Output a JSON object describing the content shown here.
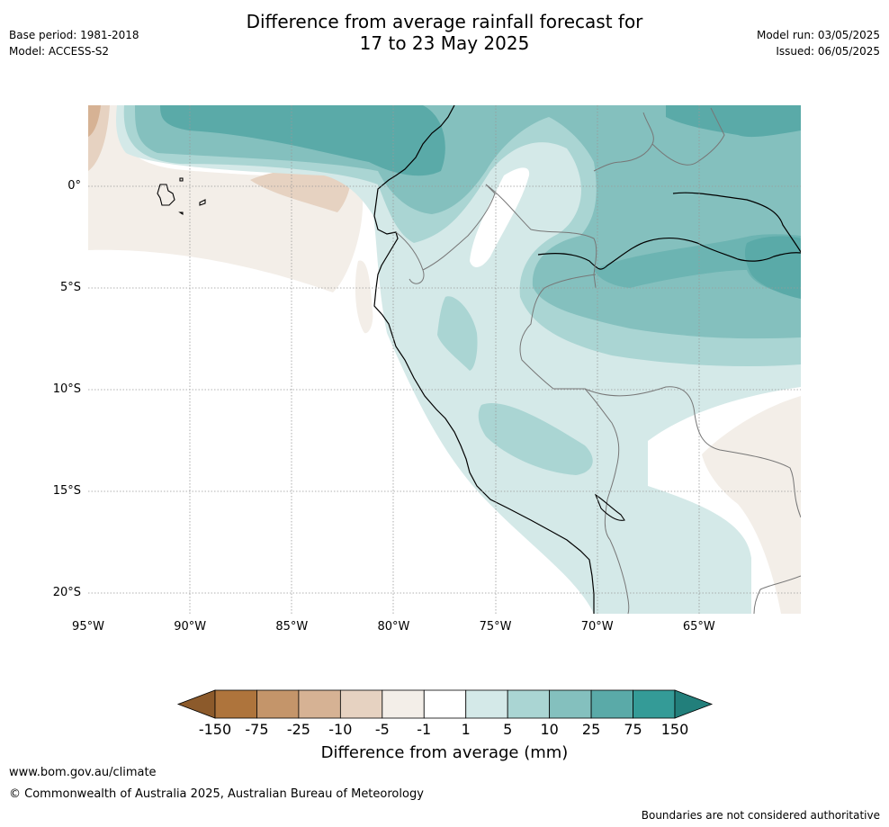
{
  "title": {
    "line1": "Difference from average rainfall forecast for",
    "line2": "17 to 23 May 2025"
  },
  "meta_left": {
    "base_period": "Base period: 1981-2018",
    "model": "Model: ACCESS-S2"
  },
  "meta_right": {
    "model_run": "Model run: 03/05/2025",
    "issued": "Issued: 06/05/2025"
  },
  "map": {
    "lon_range": [
      -95,
      -60
    ],
    "lat_range": [
      -21,
      4
    ],
    "lat_labels": [
      "0°",
      "5°S",
      "10°S",
      "15°S",
      "20°S"
    ],
    "lat_values": [
      0,
      -5,
      -10,
      -15,
      -20
    ],
    "lon_labels": [
      "95°W",
      "90°W",
      "85°W",
      "80°W",
      "75°W",
      "70°W",
      "65°W"
    ],
    "lon_values": [
      -95,
      -90,
      -85,
      -80,
      -75,
      -70,
      -65
    ]
  },
  "colorbar": {
    "ticks": [
      "-150",
      "-75",
      "-25",
      "-10",
      "-5",
      "-1",
      "1",
      "5",
      "10",
      "25",
      "75",
      "150"
    ],
    "colors": [
      "#8c5a2b",
      "#ae743c",
      "#c4956a",
      "#d6b294",
      "#e6d2c1",
      "#f3eee8",
      "#ffffff",
      "#d4e9e8",
      "#aad5d3",
      "#84c0be",
      "#5aaaa8",
      "#349b97",
      "#227f7b"
    ],
    "label": "Difference from average (mm)"
  },
  "footer": {
    "url": "www.bom.gov.au/climate",
    "copyright": "© Commonwealth of Australia 2025, Australian Bureau of Meteorology",
    "note": "Boundaries are not considered authoritative"
  }
}
